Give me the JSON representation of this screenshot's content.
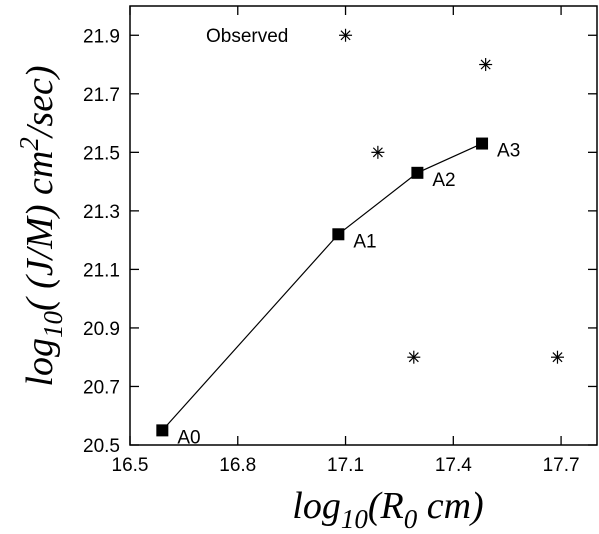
{
  "chart_data": {
    "type": "scatter",
    "xlim": [
      16.5,
      17.8
    ],
    "ylim": [
      20.5,
      22.0
    ],
    "x_ticks": [
      "16.5",
      "16.8",
      "17.1",
      "17.4",
      "17.7"
    ],
    "y_ticks": [
      "20.5",
      "20.7",
      "20.9",
      "21.1",
      "21.3",
      "21.5",
      "21.7",
      "21.9"
    ],
    "xlabel": {
      "base": "log",
      "sub": "10",
      "mid": "(R",
      "sub2": "0",
      "end": " cm)"
    },
    "ylabel": {
      "base": "log",
      "sub": "10",
      "mid": "( (J/M) cm",
      "sup": "2",
      "end": "/sec)"
    },
    "annotation": "Observed",
    "grid": false,
    "series": [
      {
        "marker": "square",
        "line": true,
        "points": [
          {
            "label": "A0",
            "x": 16.59,
            "y": 20.55
          },
          {
            "label": "A1",
            "x": 17.08,
            "y": 21.22
          },
          {
            "label": "A2",
            "x": 17.3,
            "y": 21.43
          },
          {
            "label": "A3",
            "x": 17.48,
            "y": 21.53
          }
        ]
      },
      {
        "marker": "asterisk",
        "line": false,
        "points": [
          {
            "x": 17.1,
            "y": 21.9
          },
          {
            "x": 17.19,
            "y": 21.5
          },
          {
            "x": 17.49,
            "y": 21.8
          },
          {
            "x": 17.29,
            "y": 20.8
          },
          {
            "x": 17.69,
            "y": 20.8
          }
        ]
      }
    ]
  }
}
